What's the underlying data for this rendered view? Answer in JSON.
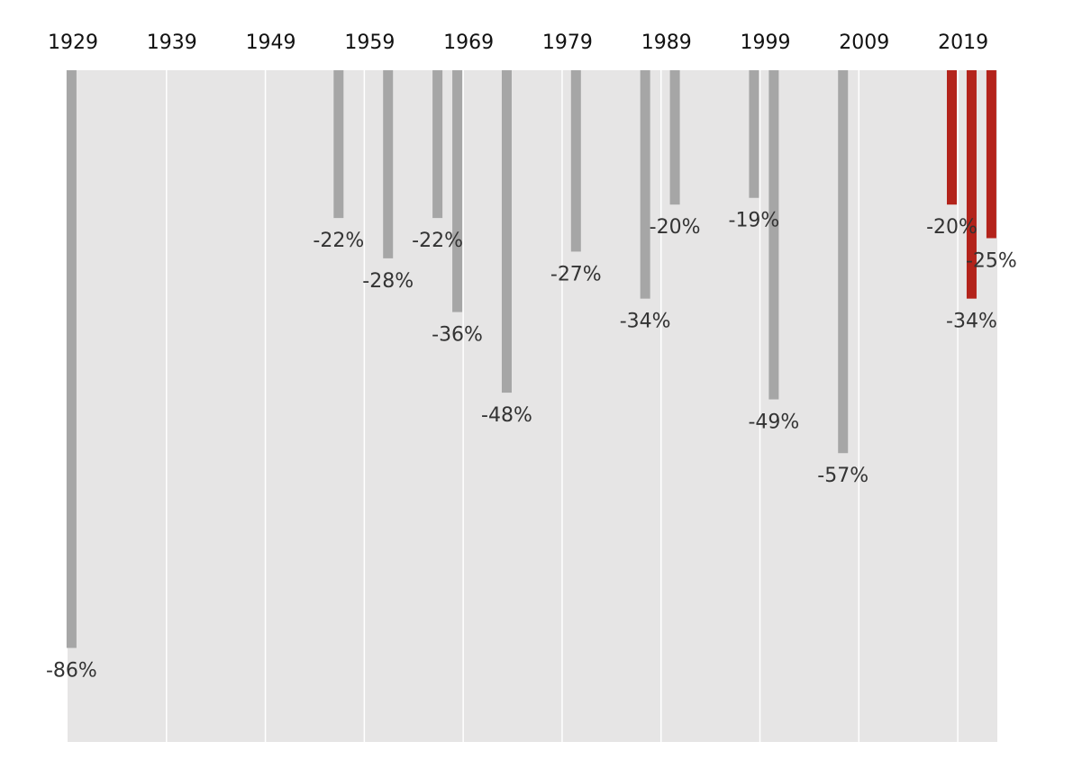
{
  "chart_data": {
    "type": "bar",
    "title": "",
    "xlabel": "",
    "ylabel": "",
    "x_tick_labels": [
      "1929",
      "1939",
      "1949",
      "1959",
      "1969",
      "1979",
      "1989",
      "1999",
      "2009",
      "2019"
    ],
    "x_range": [
      1929,
      2023
    ],
    "y_range": [
      0,
      -100
    ],
    "grid": true,
    "colors": {
      "historical": "#a6a6a6",
      "highlight": "#b3231b",
      "background": "#e6e5e5",
      "grid": "#ffffff"
    },
    "series": [
      {
        "values": [
          {
            "x": 1929.4,
            "y": -86,
            "label": "-86%"
          },
          {
            "x": 1956.4,
            "y": -22,
            "label": "-22%"
          },
          {
            "x": 1961.4,
            "y": -28,
            "label": "-28%"
          },
          {
            "x": 1966.4,
            "y": -22,
            "label": "-22%"
          },
          {
            "x": 1968.4,
            "y": -36,
            "label": "-36%"
          },
          {
            "x": 1973.4,
            "y": -48,
            "label": "-48%"
          },
          {
            "x": 1980.4,
            "y": -27,
            "label": "-27%"
          },
          {
            "x": 1987.4,
            "y": -34,
            "label": "-34%"
          },
          {
            "x": 1990.4,
            "y": -20,
            "label": "-20%"
          },
          {
            "x": 1998.4,
            "y": -19,
            "label": "-19%"
          },
          {
            "x": 2000.4,
            "y": -49,
            "label": "-49%"
          },
          {
            "x": 2007.4,
            "y": -57,
            "label": "-57%"
          },
          {
            "x": 2018.4,
            "y": -20,
            "label": "-20%",
            "highlight": true
          },
          {
            "x": 2020.4,
            "y": -34,
            "label": "-34%",
            "highlight": true
          },
          {
            "x": 2022.4,
            "y": -25,
            "label": "-25%",
            "highlight": true
          }
        ]
      }
    ]
  }
}
